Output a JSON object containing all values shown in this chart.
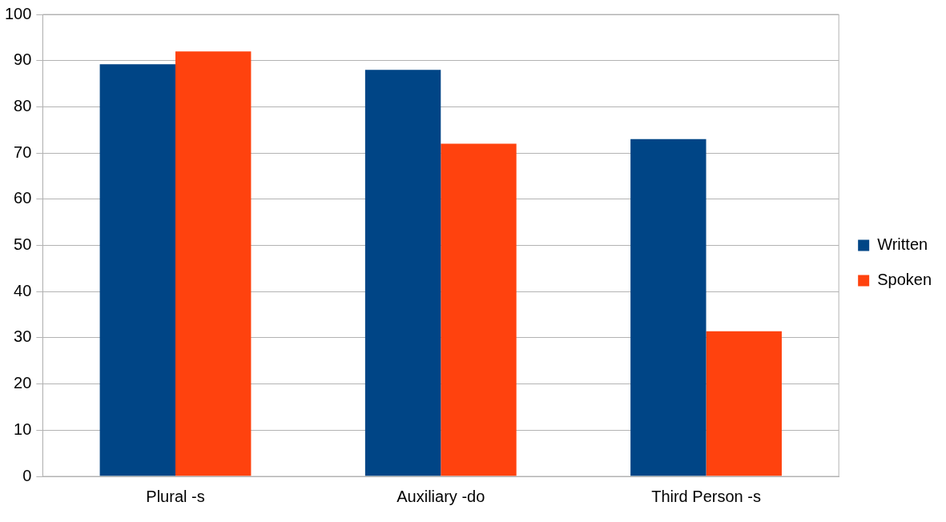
{
  "chart_data": {
    "type": "bar",
    "categories": [
      "Plural -s",
      "Auxiliary -do",
      "Third Person -s"
    ],
    "series": [
      {
        "name": "Written",
        "color": "#004586",
        "values": [
          89.2,
          88,
          73
        ]
      },
      {
        "name": "Spoken",
        "color": "#ff420e",
        "values": [
          92,
          72,
          31.4
        ]
      }
    ],
    "ylim": [
      0,
      100
    ],
    "yticks": [
      0,
      10,
      20,
      30,
      40,
      50,
      60,
      70,
      80,
      90,
      100
    ],
    "grid": "y",
    "legend": "right"
  }
}
